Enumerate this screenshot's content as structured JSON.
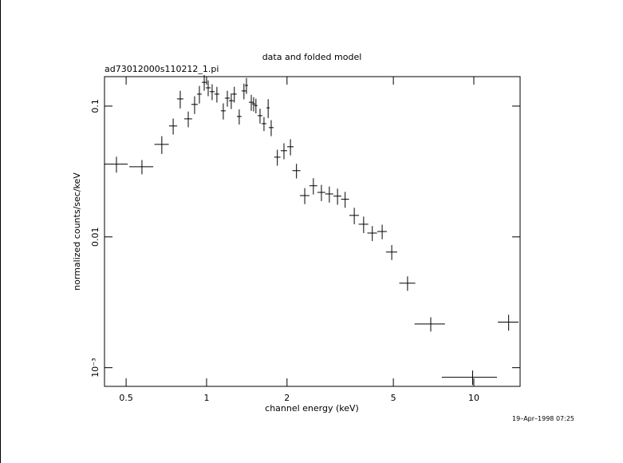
{
  "chart_data": {
    "type": "scatter",
    "title": "data and folded model",
    "subtitle": "ad73012000s110212_1.pi",
    "xlabel": "channel energy (keV)",
    "ylabel": "normalized counts/sec/keV",
    "annotation": "19–Apr–1998 07:25",
    "xlog": true,
    "ylog": true,
    "color": "#000000",
    "xlim": [
      0.415,
      14.9
    ],
    "ylim": [
      0.00072,
      0.168
    ],
    "xticks": [
      0.5,
      1,
      2,
      5,
      10
    ],
    "yticks": [
      0.1,
      0.01,
      {
        "value": 0.001,
        "label": "10⁻³"
      }
    ],
    "x": [
      0.46,
      0.573,
      0.68,
      0.75,
      0.797,
      0.854,
      0.902,
      0.94,
      0.98,
      1.014,
      1.049,
      1.093,
      1.155,
      1.196,
      1.237,
      1.27,
      1.325,
      1.38,
      1.41,
      1.47,
      1.5,
      1.53,
      1.585,
      1.64,
      1.7,
      1.745,
      1.84,
      1.948,
      2.06,
      2.17,
      2.33,
      2.51,
      2.69,
      2.88,
      3.09,
      3.3,
      3.57,
      3.87,
      4.17,
      4.54,
      4.93,
      5.65,
      6.9,
      9.9,
      13.5
    ],
    "xerr": [
      0.047,
      0.059,
      0.042,
      0.026,
      0.022,
      0.029,
      0.025,
      0.019,
      0.02,
      0.021,
      0.022,
      0.023,
      0.024,
      0.025,
      0.025,
      0.026,
      0.027,
      0.028,
      0.019,
      0.03,
      0.021,
      0.021,
      0.033,
      0.034,
      0.023,
      0.036,
      0.05,
      0.054,
      0.057,
      0.075,
      0.096,
      0.086,
      0.092,
      0.099,
      0.106,
      0.113,
      0.147,
      0.16,
      0.172,
      0.187,
      0.237,
      0.388,
      0.9,
      2.31,
      1.2
    ],
    "y": [
      0.036,
      0.0344,
      0.051,
      0.0705,
      0.1135,
      0.0799,
      0.103,
      0.1235,
      0.152,
      0.138,
      0.129,
      0.1235,
      0.092,
      0.115,
      0.11,
      0.1235,
      0.0833,
      0.1306,
      0.144,
      0.107,
      0.104,
      0.101,
      0.0845,
      0.0734,
      0.097,
      0.0685,
      0.0407,
      0.0456,
      0.0489,
      0.0321,
      0.0207,
      0.0246,
      0.0219,
      0.0213,
      0.0205,
      0.0194,
      0.0146,
      0.0125,
      0.0107,
      0.011,
      0.00766,
      0.00443,
      0.00216,
      0.000845,
      0.00223
    ],
    "yerr": [
      0.005,
      0.0043,
      0.0079,
      0.0099,
      0.0175,
      0.011,
      0.016,
      0.019,
      0.021,
      0.019,
      0.018,
      0.017,
      0.013,
      0.016,
      0.015,
      0.017,
      0.011,
      0.018,
      0.02,
      0.015,
      0.013,
      0.013,
      0.011,
      0.009,
      0.016,
      0.0096,
      0.0057,
      0.0064,
      0.0069,
      0.0041,
      0.0029,
      0.0035,
      0.0031,
      0.003,
      0.0029,
      0.0027,
      0.0021,
      0.0018,
      0.0014,
      0.0014,
      0.001,
      0.00056,
      0.00027,
      0.000107,
      0.00031
    ]
  }
}
